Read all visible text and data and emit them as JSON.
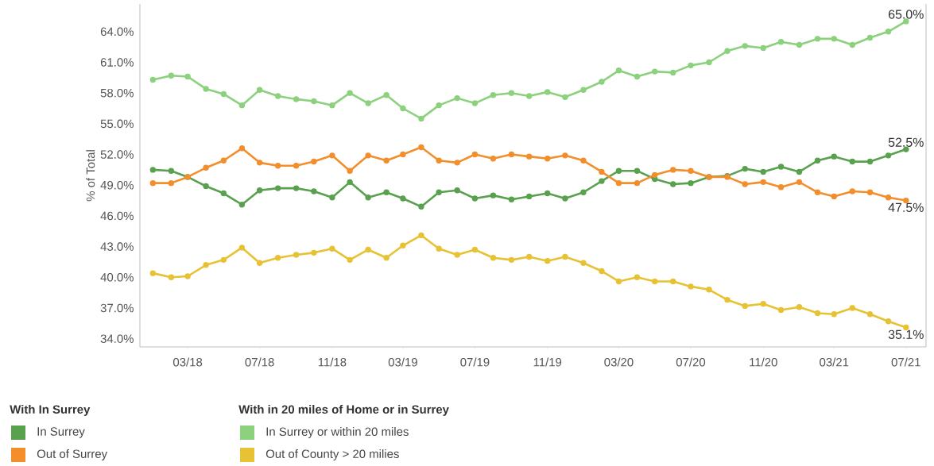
{
  "chart_data": {
    "type": "line",
    "ylabel": "% of Total",
    "legend_title": "With In Surrey",
    "annotations": [
      "With in 20 miles of Home or in Surrey"
    ],
    "legend": "bottom left",
    "marker": "circle",
    "line_style": "solid",
    "grid": false,
    "x": [
      "2018-01",
      "2018-02",
      "2018-03",
      "2018-04",
      "2018-05",
      "2018-06",
      "2018-07",
      "2018-08",
      "2018-09",
      "2018-10",
      "2018-11",
      "2018-12",
      "2019-01",
      "2019-02",
      "2019-03",
      "2019-04",
      "2019-05",
      "2019-06",
      "2019-07",
      "2019-08",
      "2019-09",
      "2019-10",
      "2019-11",
      "2019-12",
      "2020-01",
      "2020-02",
      "2020-03",
      "2020-04",
      "2020-05",
      "2020-06",
      "2020-07",
      "2020-08",
      "2020-09",
      "2020-10",
      "2020-11",
      "2020-12",
      "2021-01",
      "2021-02",
      "2021-03",
      "2021-04",
      "2021-05",
      "2021-06",
      "2021-07"
    ],
    "xlim": [
      "2017-12-10",
      "2021-08-04"
    ],
    "xticks": [
      {
        "value": "2018-03",
        "label": "03/18"
      },
      {
        "value": "2018-07",
        "label": "07/18"
      },
      {
        "value": "2018-11",
        "label": "11/18"
      },
      {
        "value": "2019-03",
        "label": "03/19"
      },
      {
        "value": "2019-07",
        "label": "07/19"
      },
      {
        "value": "2019-11",
        "label": "11/19"
      },
      {
        "value": "2020-03",
        "label": "03/20"
      },
      {
        "value": "2020-07",
        "label": "07/20"
      },
      {
        "value": "2020-11",
        "label": "11/20"
      },
      {
        "value": "2021-03",
        "label": "03/21"
      },
      {
        "value": "2021-07",
        "label": "07/21"
      }
    ],
    "ylim": [
      33.2,
      66.7
    ],
    "yticks": [
      {
        "value": 34,
        "label": "34.0%"
      },
      {
        "value": 37,
        "label": "37.0%"
      },
      {
        "value": 40,
        "label": "40.0%"
      },
      {
        "value": 43,
        "label": "43.0%"
      },
      {
        "value": 46,
        "label": "46.0%"
      },
      {
        "value": 49,
        "label": "49.0%"
      },
      {
        "value": 52,
        "label": "52.0%"
      },
      {
        "value": 55,
        "label": "55.0%"
      },
      {
        "value": 58,
        "label": "58.0%"
      },
      {
        "value": 61,
        "label": "61.0%"
      },
      {
        "value": 64,
        "label": "64.0%"
      }
    ],
    "series": [
      {
        "name": "In Surrey",
        "color": "#59a14f",
        "values": [
          50.5,
          50.4,
          49.8,
          48.9,
          48.2,
          47.1,
          48.5,
          48.7,
          48.7,
          48.4,
          47.8,
          49.3,
          47.8,
          48.3,
          47.7,
          46.9,
          48.3,
          48.5,
          47.7,
          48.0,
          47.6,
          47.9,
          48.2,
          47.7,
          48.3,
          49.4,
          50.4,
          50.4,
          49.6,
          49.1,
          49.2,
          49.8,
          49.9,
          50.6,
          50.3,
          50.8,
          50.3,
          51.4,
          51.8,
          51.3,
          51.3,
          51.9,
          52.5
        ],
        "value_labels": [
          null,
          null,
          null,
          null,
          null,
          null,
          null,
          null,
          null,
          null,
          null,
          null,
          null,
          null,
          null,
          null,
          null,
          null,
          null,
          null,
          null,
          null,
          null,
          null,
          null,
          null,
          null,
          null,
          null,
          null,
          null,
          null,
          null,
          null,
          null,
          null,
          null,
          null,
          null,
          null,
          null,
          null,
          "52.5%"
        ]
      },
      {
        "name": "Out of Surrey",
        "color": "#f28e2b",
        "values": [
          49.2,
          49.2,
          49.8,
          50.7,
          51.4,
          52.6,
          51.2,
          50.9,
          50.9,
          51.3,
          51.9,
          50.4,
          51.9,
          51.4,
          52.0,
          52.7,
          51.4,
          51.2,
          52.0,
          51.6,
          52.0,
          51.8,
          51.6,
          51.9,
          51.4,
          50.3,
          49.2,
          49.2,
          50.0,
          50.5,
          50.4,
          49.8,
          49.8,
          49.1,
          49.3,
          48.8,
          49.3,
          48.3,
          47.9,
          48.4,
          48.3,
          47.8,
          47.5
        ],
        "value_labels": [
          null,
          null,
          null,
          null,
          null,
          null,
          null,
          null,
          null,
          null,
          null,
          null,
          null,
          null,
          null,
          null,
          null,
          null,
          null,
          null,
          null,
          null,
          null,
          null,
          null,
          null,
          null,
          null,
          null,
          null,
          null,
          null,
          null,
          null,
          null,
          null,
          null,
          null,
          null,
          null,
          null,
          null,
          "47.5%"
        ]
      },
      {
        "name": "In Surrey or within 20 miles",
        "color": "#8cd17d",
        "values": [
          59.3,
          59.7,
          59.6,
          58.4,
          57.9,
          56.8,
          58.3,
          57.7,
          57.4,
          57.2,
          56.8,
          58.0,
          57.0,
          57.8,
          56.5,
          55.5,
          56.8,
          57.5,
          57.0,
          57.8,
          58.0,
          57.7,
          58.1,
          57.6,
          58.3,
          59.1,
          60.2,
          59.6,
          60.1,
          60.0,
          60.7,
          61.0,
          62.1,
          62.6,
          62.4,
          63.0,
          62.7,
          63.3,
          63.3,
          62.7,
          63.4,
          64.0,
          65.0
        ],
        "value_labels": [
          null,
          null,
          null,
          null,
          null,
          null,
          null,
          null,
          null,
          null,
          null,
          null,
          null,
          null,
          null,
          null,
          null,
          null,
          null,
          null,
          null,
          null,
          null,
          null,
          null,
          null,
          null,
          null,
          null,
          null,
          null,
          null,
          null,
          null,
          null,
          null,
          null,
          null,
          null,
          null,
          null,
          null,
          "65.0%"
        ]
      },
      {
        "name": "Out of County > 20 milies",
        "color": "#e6c234",
        "values": [
          40.4,
          40.0,
          40.1,
          41.2,
          41.7,
          42.9,
          41.4,
          41.9,
          42.2,
          42.4,
          42.8,
          41.7,
          42.7,
          41.9,
          43.1,
          44.1,
          42.8,
          42.2,
          42.7,
          41.9,
          41.7,
          42.0,
          41.6,
          42.0,
          41.4,
          40.6,
          39.6,
          40.0,
          39.6,
          39.6,
          39.1,
          38.8,
          37.8,
          37.2,
          37.4,
          36.8,
          37.1,
          36.5,
          36.4,
          37.0,
          36.4,
          35.7,
          35.1
        ],
        "value_labels": [
          null,
          null,
          null,
          null,
          null,
          null,
          null,
          null,
          null,
          null,
          null,
          null,
          null,
          null,
          null,
          null,
          null,
          null,
          null,
          null,
          null,
          null,
          null,
          null,
          null,
          null,
          null,
          null,
          null,
          null,
          null,
          null,
          null,
          null,
          null,
          null,
          null,
          null,
          null,
          null,
          null,
          null,
          "35.1%"
        ]
      }
    ]
  }
}
